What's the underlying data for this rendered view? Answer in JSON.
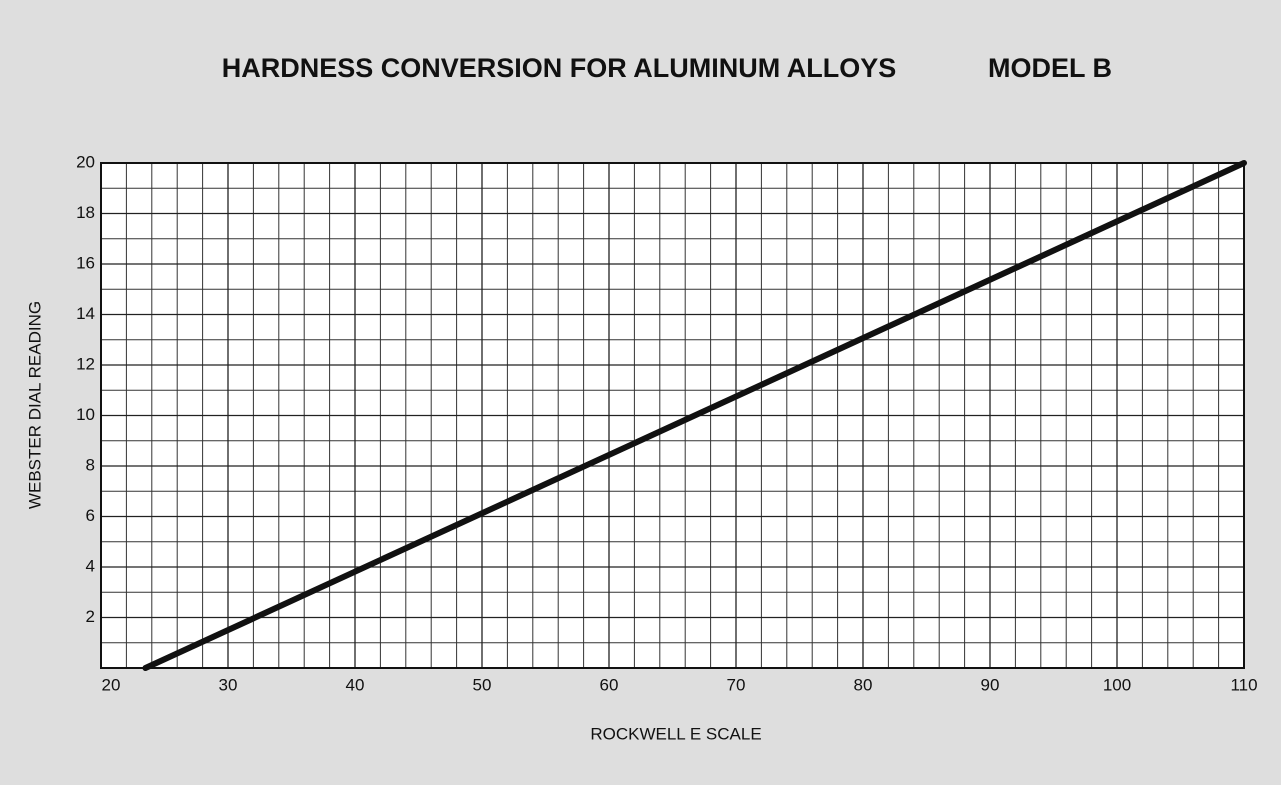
{
  "chart_data": {
    "type": "line",
    "title": "HARDNESS CONVERSION FOR ALUMINUM ALLOYS",
    "subtitle": "MODEL B",
    "x_label": "ROCKWELL E SCALE",
    "y_label": "WEBSTER DIAL READING",
    "x": [
      23.5,
      110
    ],
    "series": [
      {
        "color": "#111111",
        "values": [
          0,
          20
        ]
      }
    ],
    "xlim": [
      20,
      110
    ],
    "xticks": [
      20,
      30,
      40,
      50,
      60,
      70,
      80,
      90,
      100,
      110
    ],
    "ylim": [
      0,
      20
    ],
    "yticks": [
      2,
      4,
      6,
      8,
      10,
      12,
      14,
      16,
      18,
      20
    ],
    "grid": true,
    "minor_grid_step": {
      "x": 2,
      "y": 1
    }
  }
}
